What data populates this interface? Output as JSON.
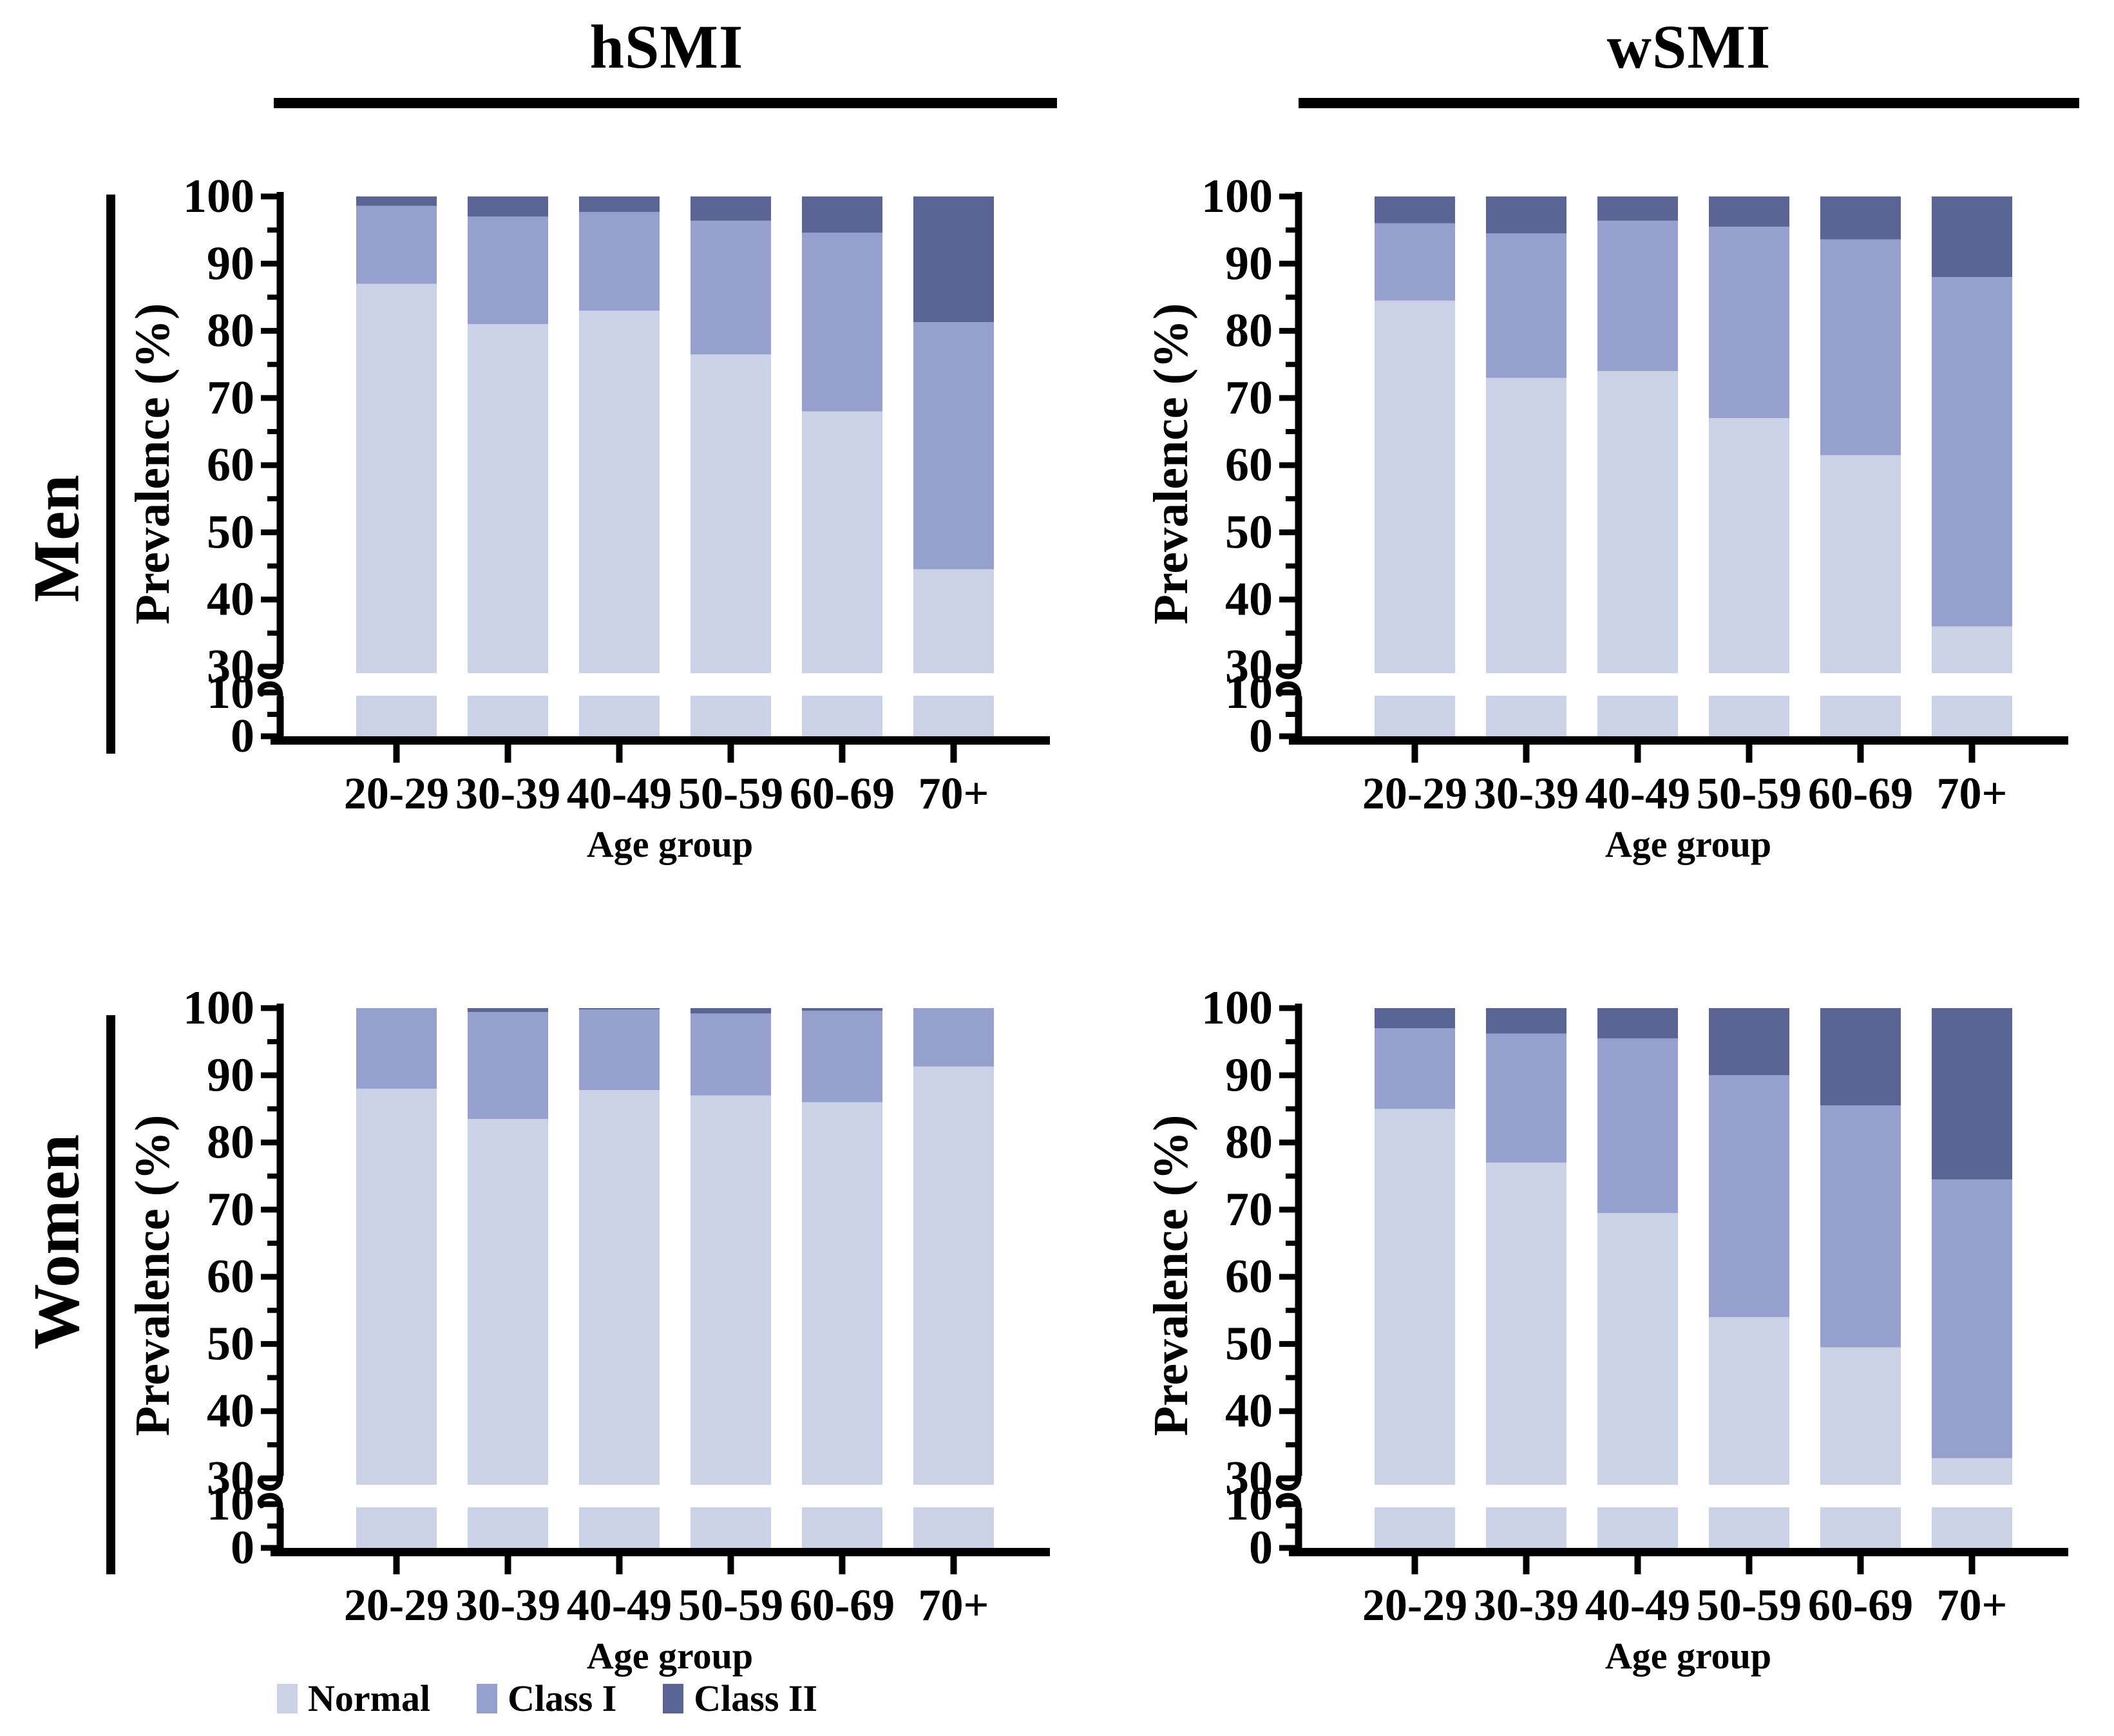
{
  "figure": {
    "columns": [
      {
        "title": "hSMI"
      },
      {
        "title": "wSMI"
      }
    ],
    "rows": [
      {
        "title": "Men"
      },
      {
        "title": "Women"
      }
    ],
    "legend": {
      "items": [
        {
          "label": "Normal",
          "color": "#cbd2e8"
        },
        {
          "label": "Class I",
          "color": "#96a0ce"
        },
        {
          "label": "Class II",
          "color": "#5a6596"
        }
      ]
    },
    "axis_color": "#000000",
    "background": "#ffffff"
  },
  "chart_data": [
    {
      "type": "bar",
      "stacked": true,
      "row": "Men",
      "column": "hSMI",
      "categories": [
        "20-29",
        "30-39",
        "40-49",
        "50-59",
        "60-69",
        "70+"
      ],
      "series": [
        {
          "name": "Normal",
          "color": "#cbd2e8",
          "values": [
            87,
            81,
            83,
            76.5,
            68,
            44.5
          ]
        },
        {
          "name": "Class I",
          "color": "#96a0ce",
          "values": [
            11.6,
            16,
            14.7,
            19.9,
            26.6,
            36.8
          ]
        },
        {
          "name": "Class II",
          "color": "#5a6596",
          "values": [
            1.4,
            3,
            2.3,
            3.6,
            5.4,
            18.7
          ]
        }
      ],
      "xlabel": "Age group",
      "ylabel": "Prevalence (%)",
      "yticks": [
        0,
        10,
        30,
        40,
        50,
        60,
        70,
        80,
        90,
        100
      ],
      "minor_yticks": [
        5,
        35,
        45,
        55,
        65,
        75,
        85,
        95
      ],
      "axis_break": {
        "between": [
          10,
          30
        ]
      },
      "ylim": [
        0,
        100
      ],
      "grid": false,
      "legend_position": "figure-bottom"
    },
    {
      "type": "bar",
      "stacked": true,
      "row": "Men",
      "column": "wSMI",
      "categories": [
        "20-29",
        "30-39",
        "40-49",
        "50-59",
        "60-69",
        "70+"
      ],
      "series": [
        {
          "name": "Normal",
          "color": "#cbd2e8",
          "values": [
            84.5,
            73,
            74,
            67,
            61.5,
            36
          ]
        },
        {
          "name": "Class I",
          "color": "#96a0ce",
          "values": [
            11.5,
            21.5,
            22.4,
            28.5,
            32.1,
            52
          ]
        },
        {
          "name": "Class II",
          "color": "#5a6596",
          "values": [
            4,
            5.5,
            3.6,
            4.5,
            6.4,
            12
          ]
        }
      ],
      "xlabel": "Age group",
      "ylabel": "Prevalence (%)",
      "yticks": [
        0,
        10,
        30,
        40,
        50,
        60,
        70,
        80,
        90,
        100
      ],
      "minor_yticks": [
        5,
        35,
        45,
        55,
        65,
        75,
        85,
        95
      ],
      "axis_break": {
        "between": [
          10,
          30
        ]
      },
      "ylim": [
        0,
        100
      ],
      "grid": false,
      "legend_position": "figure-bottom"
    },
    {
      "type": "bar",
      "stacked": true,
      "row": "Women",
      "column": "hSMI",
      "categories": [
        "20-29",
        "30-39",
        "40-49",
        "50-59",
        "60-69",
        "70+"
      ],
      "series": [
        {
          "name": "Normal",
          "color": "#cbd2e8",
          "values": [
            88,
            83.5,
            87.8,
            87,
            86,
            91.3
          ]
        },
        {
          "name": "Class I",
          "color": "#96a0ce",
          "values": [
            12,
            15.9,
            12,
            12.2,
            13.6,
            8.7
          ]
        },
        {
          "name": "Class II",
          "color": "#5a6596",
          "values": [
            0,
            0.6,
            0.2,
            0.8,
            0.4,
            0
          ]
        }
      ],
      "xlabel": "Age group",
      "ylabel": "Prevalence (%)",
      "yticks": [
        0,
        10,
        30,
        40,
        50,
        60,
        70,
        80,
        90,
        100
      ],
      "minor_yticks": [
        5,
        35,
        45,
        55,
        65,
        75,
        85,
        95
      ],
      "axis_break": {
        "between": [
          10,
          30
        ]
      },
      "ylim": [
        0,
        100
      ],
      "grid": false,
      "legend_position": "figure-bottom"
    },
    {
      "type": "bar",
      "stacked": true,
      "row": "Women",
      "column": "wSMI",
      "categories": [
        "20-29",
        "30-39",
        "40-49",
        "50-59",
        "60-69",
        "70+"
      ],
      "series": [
        {
          "name": "Normal",
          "color": "#cbd2e8",
          "values": [
            85,
            77,
            69.5,
            54,
            49.5,
            33
          ]
        },
        {
          "name": "Class I",
          "color": "#96a0ce",
          "values": [
            12,
            19.2,
            26,
            36,
            36,
            41.5
          ]
        },
        {
          "name": "Class II",
          "color": "#5a6596",
          "values": [
            3,
            3.8,
            4.5,
            10,
            14.5,
            25.5
          ]
        }
      ],
      "xlabel": "Age group",
      "ylabel": "Prevalence (%)",
      "yticks": [
        0,
        10,
        30,
        40,
        50,
        60,
        70,
        80,
        90,
        100
      ],
      "minor_yticks": [
        5,
        35,
        45,
        55,
        65,
        75,
        85,
        95
      ],
      "axis_break": {
        "between": [
          10,
          30
        ]
      },
      "ylim": [
        0,
        100
      ],
      "grid": false,
      "legend_position": "figure-bottom"
    }
  ]
}
